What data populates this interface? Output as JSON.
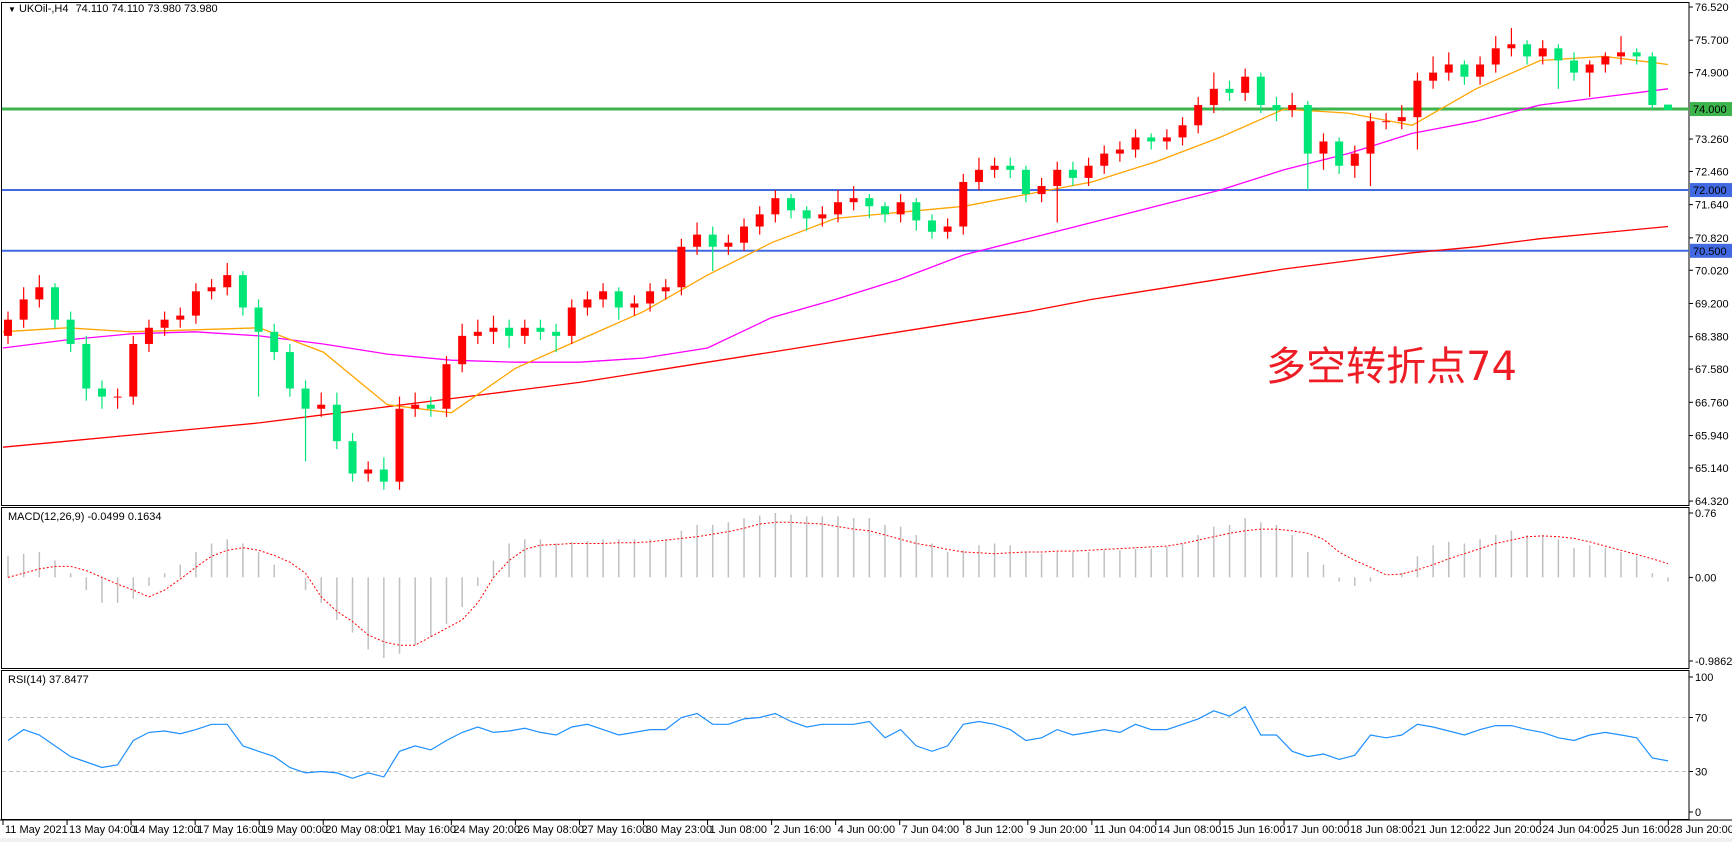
{
  "header": {
    "symbol": "UKOil-,H4",
    "ohlc": "74.110 74.110 73.980 73.980",
    "menu_icon": "triangle-down-icon"
  },
  "annotation": "多空转折点74",
  "macd_label": "MACD(12,26,9) -0.0499 0.1634",
  "rsi_label": "RSI(14) 37.8477",
  "colors": {
    "bull": "#ff0000",
    "bear": "#00e676",
    "ma_fast": "#ffa500",
    "ma_mid": "#ff00ff",
    "ma_slow": "#ff0000",
    "level_green": "#3cb44b",
    "level_blue": "#4169e1",
    "macd_hist": "#c0c0c0",
    "macd_signal": "#ff0000",
    "rsi": "#1e90ff"
  },
  "chart_data": [
    {
      "type": "candlestick",
      "ylim": [
        64.32,
        76.52
      ],
      "price_ticks": [
        "76.520",
        "75.700",
        "74.900",
        "73.260",
        "72.460",
        "71.640",
        "70.820",
        "70.020",
        "69.200",
        "68.380",
        "67.580",
        "66.760",
        "65.940",
        "65.140",
        "64.320"
      ],
      "time_ticks": [
        "11 May 2021",
        "13 May 04:00",
        "14 May 12:00",
        "17 May 16:00",
        "19 May 00:00",
        "20 May 08:00",
        "21 May 16:00",
        "24 May 20:00",
        "26 May 08:00",
        "27 May 16:00",
        "30 May 23:00",
        "1 Jun 08:00",
        "2 Jun 16:00",
        "4 Jun 00:00",
        "7 Jun 04:00",
        "8 Jun 12:00",
        "9 Jun 20:00",
        "11 Jun 04:00",
        "14 Jun 08:00",
        "15 Jun 16:00",
        "17 Jun 00:00",
        "18 Jun 08:00",
        "21 Jun 12:00",
        "22 Jun 20:00",
        "24 Jun 04:00",
        "25 Jun 16:00",
        "28 Jun 20:00"
      ],
      "levels": [
        {
          "value": 74.0,
          "label": "74.000",
          "color": "#3cb44b"
        },
        {
          "value": 72.0,
          "label": "72.000",
          "color": "#4169e1"
        },
        {
          "value": 70.5,
          "label": "70.500",
          "color": "#4169e1"
        }
      ],
      "ohlc": [
        [
          68.4,
          69.0,
          68.2,
          68.8
        ],
        [
          68.8,
          69.6,
          68.6,
          69.3
        ],
        [
          69.3,
          69.9,
          69.1,
          69.6
        ],
        [
          69.6,
          69.7,
          68.6,
          68.8
        ],
        [
          68.8,
          69.0,
          68.0,
          68.2
        ],
        [
          68.2,
          68.4,
          66.8,
          67.1
        ],
        [
          67.1,
          67.3,
          66.6,
          66.9
        ],
        [
          66.9,
          67.1,
          66.6,
          66.9
        ],
        [
          66.9,
          68.4,
          66.7,
          68.2
        ],
        [
          68.2,
          68.8,
          68.0,
          68.6
        ],
        [
          68.6,
          69.0,
          68.4,
          68.8
        ],
        [
          68.8,
          69.1,
          68.6,
          68.9
        ],
        [
          68.9,
          69.7,
          68.7,
          69.5
        ],
        [
          69.5,
          69.8,
          69.3,
          69.6
        ],
        [
          69.6,
          70.2,
          69.4,
          69.9
        ],
        [
          69.9,
          70.0,
          68.9,
          69.1
        ],
        [
          69.1,
          69.3,
          66.9,
          68.5
        ],
        [
          68.5,
          68.7,
          67.8,
          68.0
        ],
        [
          68.0,
          68.2,
          66.9,
          67.1
        ],
        [
          67.1,
          67.3,
          65.3,
          66.6
        ],
        [
          66.6,
          67.0,
          66.4,
          66.7
        ],
        [
          66.7,
          67.0,
          65.6,
          65.8
        ],
        [
          65.8,
          66.0,
          64.8,
          65.0
        ],
        [
          65.0,
          65.3,
          64.8,
          65.1
        ],
        [
          65.1,
          65.4,
          64.6,
          64.8
        ],
        [
          64.8,
          66.9,
          64.6,
          66.6
        ],
        [
          66.6,
          67.0,
          66.4,
          66.7
        ],
        [
          66.7,
          66.9,
          66.4,
          66.6
        ],
        [
          66.6,
          67.9,
          66.4,
          67.7
        ],
        [
          67.7,
          68.7,
          67.5,
          68.4
        ],
        [
          68.4,
          68.8,
          68.2,
          68.5
        ],
        [
          68.5,
          68.9,
          68.2,
          68.6
        ],
        [
          68.6,
          68.8,
          68.1,
          68.4
        ],
        [
          68.4,
          68.8,
          68.2,
          68.6
        ],
        [
          68.6,
          68.8,
          68.3,
          68.5
        ],
        [
          68.5,
          68.7,
          68.0,
          68.4
        ],
        [
          68.4,
          69.3,
          68.2,
          69.1
        ],
        [
          69.1,
          69.5,
          68.9,
          69.3
        ],
        [
          69.3,
          69.7,
          69.1,
          69.5
        ],
        [
          69.5,
          69.6,
          68.8,
          69.1
        ],
        [
          69.1,
          69.4,
          68.9,
          69.2
        ],
        [
          69.2,
          69.7,
          69.0,
          69.5
        ],
        [
          69.5,
          69.8,
          69.3,
          69.6
        ],
        [
          69.6,
          70.8,
          69.4,
          70.6
        ],
        [
          70.6,
          71.2,
          70.4,
          70.9
        ],
        [
          70.9,
          71.1,
          70.0,
          70.6
        ],
        [
          70.6,
          70.9,
          70.4,
          70.7
        ],
        [
          70.7,
          71.3,
          70.5,
          71.1
        ],
        [
          71.1,
          71.6,
          70.9,
          71.4
        ],
        [
          71.4,
          72.0,
          71.2,
          71.8
        ],
        [
          71.8,
          71.9,
          71.3,
          71.5
        ],
        [
          71.5,
          71.6,
          71.0,
          71.3
        ],
        [
          71.3,
          71.6,
          71.1,
          71.4
        ],
        [
          71.4,
          72.0,
          71.2,
          71.7
        ],
        [
          71.7,
          72.1,
          71.5,
          71.8
        ],
        [
          71.8,
          71.9,
          71.3,
          71.6
        ],
        [
          71.6,
          71.7,
          71.2,
          71.4
        ],
        [
          71.4,
          71.9,
          71.2,
          71.7
        ],
        [
          71.7,
          71.8,
          71.0,
          71.25
        ],
        [
          71.25,
          71.4,
          70.8,
          70.97
        ],
        [
          70.97,
          71.3,
          70.8,
          71.1
        ],
        [
          71.1,
          72.4,
          70.9,
          72.2
        ],
        [
          72.2,
          72.8,
          72.0,
          72.5
        ],
        [
          72.5,
          72.8,
          72.3,
          72.6
        ],
        [
          72.6,
          72.8,
          72.3,
          72.5
        ],
        [
          72.5,
          72.6,
          71.7,
          71.9
        ],
        [
          71.9,
          72.3,
          71.7,
          72.1
        ],
        [
          72.1,
          72.7,
          71.2,
          72.5
        ],
        [
          72.5,
          72.7,
          72.1,
          72.3
        ],
        [
          72.3,
          72.8,
          72.1,
          72.6
        ],
        [
          72.6,
          73.1,
          72.4,
          72.9
        ],
        [
          72.9,
          73.2,
          72.7,
          73.0
        ],
        [
          73.0,
          73.5,
          72.8,
          73.3
        ],
        [
          73.3,
          73.4,
          73.0,
          73.2
        ],
        [
          73.2,
          73.5,
          73.0,
          73.3
        ],
        [
          73.3,
          73.8,
          73.1,
          73.6
        ],
        [
          73.6,
          74.3,
          73.4,
          74.1
        ],
        [
          74.1,
          74.9,
          73.9,
          74.5
        ],
        [
          74.5,
          74.7,
          74.2,
          74.4
        ],
        [
          74.4,
          75.0,
          74.2,
          74.8
        ],
        [
          74.8,
          74.9,
          73.9,
          74.1
        ],
        [
          74.1,
          74.3,
          73.7,
          73.98
        ],
        [
          73.98,
          74.4,
          73.8,
          74.1
        ],
        [
          74.1,
          74.2,
          72.0,
          72.9
        ],
        [
          72.9,
          73.4,
          72.5,
          73.2
        ],
        [
          73.2,
          73.3,
          72.4,
          72.6
        ],
        [
          72.6,
          73.1,
          72.3,
          72.9
        ],
        [
          72.9,
          73.9,
          72.1,
          73.7
        ],
        [
          73.7,
          73.9,
          73.5,
          73.7
        ],
        [
          73.7,
          74.1,
          73.5,
          73.8
        ],
        [
          73.8,
          74.9,
          73.0,
          74.7
        ],
        [
          74.7,
          75.3,
          74.5,
          74.9
        ],
        [
          74.9,
          75.4,
          74.7,
          75.1
        ],
        [
          75.1,
          75.2,
          74.6,
          74.8
        ],
        [
          74.8,
          75.3,
          74.6,
          75.1
        ],
        [
          75.1,
          75.8,
          74.9,
          75.5
        ],
        [
          75.5,
          76.0,
          75.3,
          75.6
        ],
        [
          75.6,
          75.7,
          75.1,
          75.3
        ],
        [
          75.3,
          75.7,
          75.1,
          75.5
        ],
        [
          75.5,
          75.6,
          74.5,
          75.2
        ],
        [
          75.2,
          75.4,
          74.7,
          74.9
        ],
        [
          74.9,
          75.2,
          74.3,
          75.1
        ],
        [
          75.1,
          75.4,
          74.9,
          75.3
        ],
        [
          75.3,
          75.8,
          75.1,
          75.4
        ],
        [
          75.4,
          75.5,
          75.1,
          75.3
        ],
        [
          75.3,
          75.4,
          74.0,
          74.1
        ],
        [
          74.11,
          74.11,
          73.98,
          73.98
        ]
      ],
      "ma_at_time_ticks": {
        "fast": [
          68.5,
          68.6,
          68.5,
          68.55,
          68.6,
          68.0,
          66.7,
          66.5,
          67.6,
          68.3,
          69.0,
          69.9,
          70.7,
          71.3,
          71.45,
          71.6,
          71.9,
          72.2,
          72.7,
          73.3,
          74.0,
          73.9,
          73.6,
          74.5,
          75.2,
          75.3,
          75.1
        ],
        "mid": [
          68.1,
          68.3,
          68.45,
          68.5,
          68.4,
          68.2,
          67.95,
          67.8,
          67.75,
          67.75,
          67.85,
          68.1,
          68.85,
          69.3,
          69.8,
          70.4,
          70.8,
          71.2,
          71.6,
          72.0,
          72.5,
          72.9,
          73.4,
          73.7,
          74.1,
          74.3,
          74.5
        ],
        "slow": [
          65.65,
          65.8,
          65.95,
          66.1,
          66.25,
          66.45,
          66.65,
          66.85,
          67.05,
          67.25,
          67.5,
          67.75,
          68.0,
          68.25,
          68.5,
          68.75,
          69.0,
          69.3,
          69.55,
          69.8,
          70.05,
          70.25,
          70.45,
          70.6,
          70.8,
          70.95,
          71.1
        ]
      }
    },
    {
      "type": "bar",
      "title": "MACD(12,26,9) -0.0499 0.1634",
      "ylim": [
        -0.9862,
        0.76
      ],
      "y_ticks": [
        "0.76",
        "0.00",
        "-0.9862"
      ],
      "histogram": [
        0.25,
        0.28,
        0.3,
        0.2,
        0.05,
        -0.15,
        -0.3,
        -0.3,
        -0.25,
        -0.1,
        0.05,
        0.15,
        0.3,
        0.4,
        0.45,
        0.4,
        0.3,
        0.15,
        0.0,
        -0.15,
        -0.3,
        -0.5,
        -0.65,
        -0.85,
        -0.95,
        -0.9,
        -0.8,
        -0.7,
        -0.55,
        -0.35,
        -0.1,
        0.2,
        0.4,
        0.45,
        0.45,
        0.4,
        0.42,
        0.43,
        0.45,
        0.45,
        0.45,
        0.45,
        0.45,
        0.55,
        0.62,
        0.62,
        0.65,
        0.7,
        0.73,
        0.76,
        0.74,
        0.72,
        0.72,
        0.72,
        0.7,
        0.7,
        0.62,
        0.6,
        0.5,
        0.4,
        0.3,
        0.32,
        0.38,
        0.4,
        0.38,
        0.3,
        0.28,
        0.3,
        0.3,
        0.3,
        0.32,
        0.32,
        0.34,
        0.34,
        0.36,
        0.4,
        0.5,
        0.6,
        0.62,
        0.7,
        0.65,
        0.62,
        0.5,
        0.3,
        0.15,
        -0.05,
        -0.1,
        -0.05,
        0.0,
        0.05,
        0.25,
        0.38,
        0.42,
        0.4,
        0.45,
        0.5,
        0.55,
        0.5,
        0.5,
        0.45,
        0.35,
        0.38,
        0.35,
        0.3,
        0.25,
        0.05,
        -0.05
      ],
      "signal": [
        0.0,
        0.05,
        0.1,
        0.13,
        0.13,
        0.08,
        0.0,
        -0.08,
        -0.15,
        -0.23,
        -0.15,
        -0.02,
        0.12,
        0.25,
        0.32,
        0.35,
        0.32,
        0.26,
        0.18,
        0.05,
        -0.23,
        -0.4,
        -0.52,
        -0.68,
        -0.76,
        -0.8,
        -0.8,
        -0.7,
        -0.6,
        -0.5,
        -0.3,
        0.0,
        0.2,
        0.33,
        0.38,
        0.39,
        0.4,
        0.4,
        0.4,
        0.41,
        0.41,
        0.42,
        0.44,
        0.46,
        0.48,
        0.51,
        0.54,
        0.58,
        0.63,
        0.65,
        0.65,
        0.64,
        0.63,
        0.6,
        0.57,
        0.55,
        0.5,
        0.45,
        0.4,
        0.37,
        0.33,
        0.3,
        0.29,
        0.28,
        0.29,
        0.3,
        0.3,
        0.31,
        0.31,
        0.32,
        0.33,
        0.34,
        0.35,
        0.36,
        0.37,
        0.4,
        0.44,
        0.48,
        0.52,
        0.55,
        0.57,
        0.57,
        0.55,
        0.52,
        0.45,
        0.3,
        0.2,
        0.12,
        0.03,
        0.04,
        0.09,
        0.15,
        0.22,
        0.28,
        0.34,
        0.4,
        0.44,
        0.48,
        0.49,
        0.48,
        0.46,
        0.42,
        0.37,
        0.32,
        0.27,
        0.22,
        0.1634
      ]
    },
    {
      "type": "line",
      "title": "RSI(14) 37.8477",
      "ylim": [
        0,
        100
      ],
      "y_ticks": [
        "100",
        "70",
        "30",
        "0"
      ],
      "levels": [
        70,
        30
      ],
      "values": [
        53,
        61,
        57,
        49,
        41,
        37,
        33,
        35,
        53,
        59,
        60,
        58,
        61,
        65,
        65,
        49,
        45,
        41,
        33,
        29,
        30,
        29,
        25,
        29,
        26,
        45,
        49,
        46,
        53,
        59,
        63,
        59,
        60,
        62,
        59,
        57,
        63,
        65,
        61,
        57,
        59,
        61,
        61,
        70,
        73,
        65,
        65,
        69,
        70,
        73,
        67,
        63,
        65,
        65,
        65,
        67,
        55,
        61,
        49,
        45,
        49,
        65,
        67,
        65,
        61,
        53,
        55,
        61,
        57,
        59,
        61,
        59,
        65,
        61,
        61,
        65,
        69,
        75,
        71,
        78,
        57,
        57,
        45,
        41,
        43,
        39,
        42,
        57,
        55,
        57,
        65,
        63,
        60,
        57,
        61,
        64,
        64,
        61,
        59,
        55,
        53,
        57,
        59,
        57,
        55,
        40,
        37.85
      ]
    }
  ]
}
